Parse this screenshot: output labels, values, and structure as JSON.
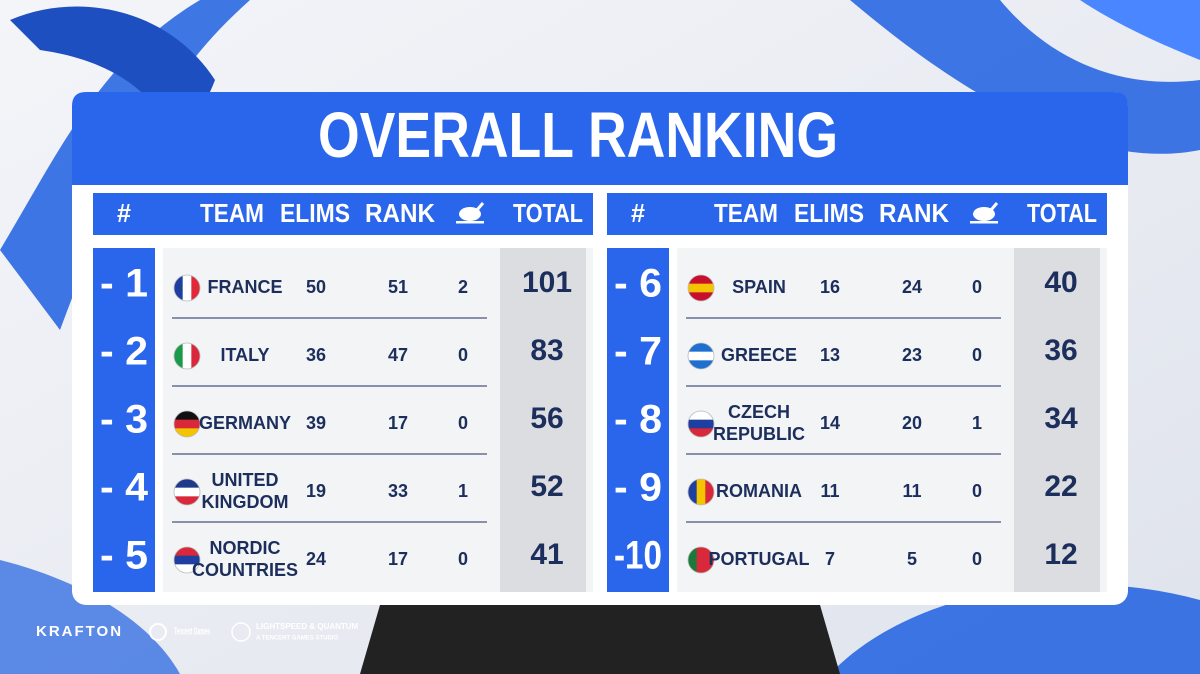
{
  "title": "OVERALL RANKING",
  "headers": {
    "position": "#",
    "team": "TEAM",
    "elims": "ELIMS",
    "rank": "RANK",
    "total": "TOTAL"
  },
  "tables": [
    {
      "rows": [
        {
          "position": "- 1",
          "team": [
            "FRANCE"
          ],
          "elims": 50,
          "rank": 51,
          "chicken": 2,
          "total": 101
        },
        {
          "position": "- 2",
          "team": [
            "ITALY"
          ],
          "elims": 36,
          "rank": 47,
          "chicken": 0,
          "total": 83
        },
        {
          "position": "- 3",
          "team": [
            "GERMANY"
          ],
          "elims": 39,
          "rank": 17,
          "chicken": 0,
          "total": 56
        },
        {
          "position": "- 4",
          "team": [
            "UNITED",
            "KINGDOM"
          ],
          "elims": 19,
          "rank": 33,
          "chicken": 1,
          "total": 52
        },
        {
          "position": "- 5",
          "team": [
            "NORDIC",
            "COUNTRIES"
          ],
          "elims": 24,
          "rank": 17,
          "chicken": 0,
          "total": 41
        }
      ]
    },
    {
      "rows": [
        {
          "position": "- 6",
          "team": [
            "SPAIN"
          ],
          "elims": 16,
          "rank": 24,
          "chicken": 0,
          "total": 40
        },
        {
          "position": "- 7",
          "team": [
            "GREECE"
          ],
          "elims": 13,
          "rank": 23,
          "chicken": 0,
          "total": 36
        },
        {
          "position": "- 8",
          "team": [
            "CZECH",
            "REPUBLIC"
          ],
          "elims": 14,
          "rank": 20,
          "chicken": 1,
          "total": 34
        },
        {
          "position": "- 9",
          "team": [
            "ROMANIA"
          ],
          "elims": 11,
          "rank": 11,
          "chicken": 0,
          "total": 22
        },
        {
          "position": "-10",
          "team": [
            "PORTUGAL"
          ],
          "elims": 7,
          "rank": 5,
          "chicken": 0,
          "total": 12
        }
      ]
    }
  ],
  "footer": {
    "krafton": "KRAFTON",
    "tencent": "Tencent Games",
    "lightspeed": "LIGHTSPEED & QUANTUM",
    "lightspeed_sub": "A TENCENT GAMES STUDIO"
  }
}
